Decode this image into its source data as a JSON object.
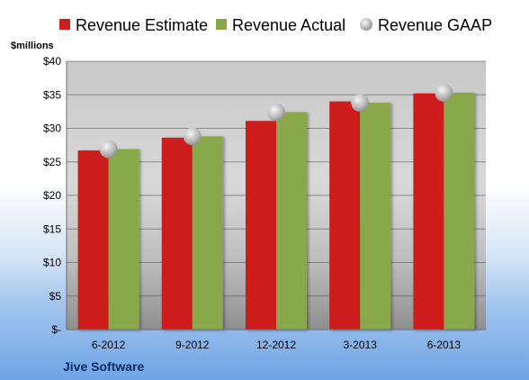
{
  "chart_data": {
    "type": "bar",
    "unit_label": "$millions",
    "source_label": "Jive Software",
    "categories": [
      "6-2012",
      "9-2012",
      "12-2012",
      "3-2013",
      "6-2013"
    ],
    "series": [
      {
        "name": "Revenue Estimate",
        "kind": "bar",
        "color": "#cc1f1f",
        "values": [
          26.7,
          28.6,
          31.1,
          34.0,
          35.2
        ]
      },
      {
        "name": "Revenue Actual",
        "kind": "bar",
        "color": "#88a84a",
        "values": [
          26.9,
          28.8,
          32.4,
          33.8,
          35.3
        ]
      },
      {
        "name": "Revenue GAAP",
        "kind": "marker",
        "color": "#c8c8c8",
        "values": [
          26.9,
          28.8,
          32.4,
          33.8,
          35.3
        ]
      }
    ],
    "yticks": [
      "$-",
      "$5",
      "$10",
      "$15",
      "$20",
      "$25",
      "$30",
      "$35",
      "$40"
    ],
    "ylim": [
      0,
      40
    ],
    "grid": true,
    "legend_position": "top"
  }
}
